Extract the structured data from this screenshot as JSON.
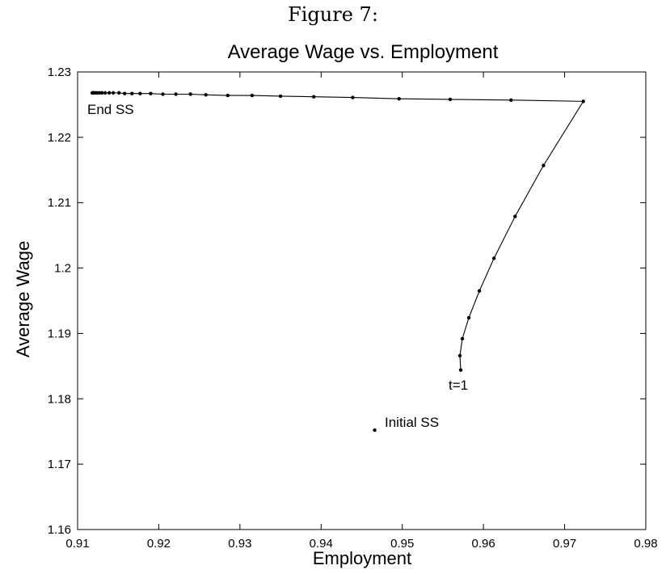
{
  "caption": "Figure 7:",
  "chart_data": {
    "type": "line",
    "title": "Average Wage vs. Employment",
    "xlabel": "Employment",
    "ylabel": "Average Wage",
    "xlim": [
      0.91,
      0.98
    ],
    "ylim": [
      1.16,
      1.23
    ],
    "xticks": [
      "0.91",
      "0.92",
      "0.93",
      "0.94",
      "0.95",
      "0.96",
      "0.97",
      "0.98"
    ],
    "yticks": [
      "1.16",
      "1.17",
      "1.18",
      "1.19",
      "1.2",
      "1.21",
      "1.22",
      "1.23"
    ],
    "grid": false,
    "series": [
      {
        "x": [
          0.9572,
          0.9571,
          0.9574,
          0.9582,
          0.9595,
          0.9613,
          0.9639,
          0.9674,
          0.9723,
          0.9634,
          0.9559,
          0.9496,
          0.9439,
          0.9391,
          0.935,
          0.9315,
          0.9285,
          0.9258,
          0.9239,
          0.9221,
          0.9205,
          0.919,
          0.9177,
          0.9167,
          0.9158,
          0.9151,
          0.9144,
          0.9139,
          0.9134,
          0.913,
          0.9127,
          0.9124,
          0.9122,
          0.912,
          0.9119,
          0.9118
        ],
        "y": [
          1.1844,
          1.1866,
          1.1892,
          1.1924,
          1.1965,
          1.2015,
          1.2079,
          1.2157,
          1.2255,
          1.2257,
          1.2258,
          1.2259,
          1.2261,
          1.2262,
          1.2263,
          1.2264,
          1.2264,
          1.2265,
          1.2266,
          1.2266,
          1.2266,
          1.2267,
          1.2267,
          1.2267,
          1.2267,
          1.2268,
          1.2268,
          1.2268,
          1.2268,
          1.2268,
          1.2268,
          1.2268,
          1.2268,
          1.2268,
          1.2268,
          1.2268
        ]
      }
    ],
    "initial_point": {
      "x": 0.9466,
      "y": 1.1752
    },
    "annotations": {
      "end": "End SS",
      "start": "t=1",
      "initial": "Initial SS"
    }
  }
}
